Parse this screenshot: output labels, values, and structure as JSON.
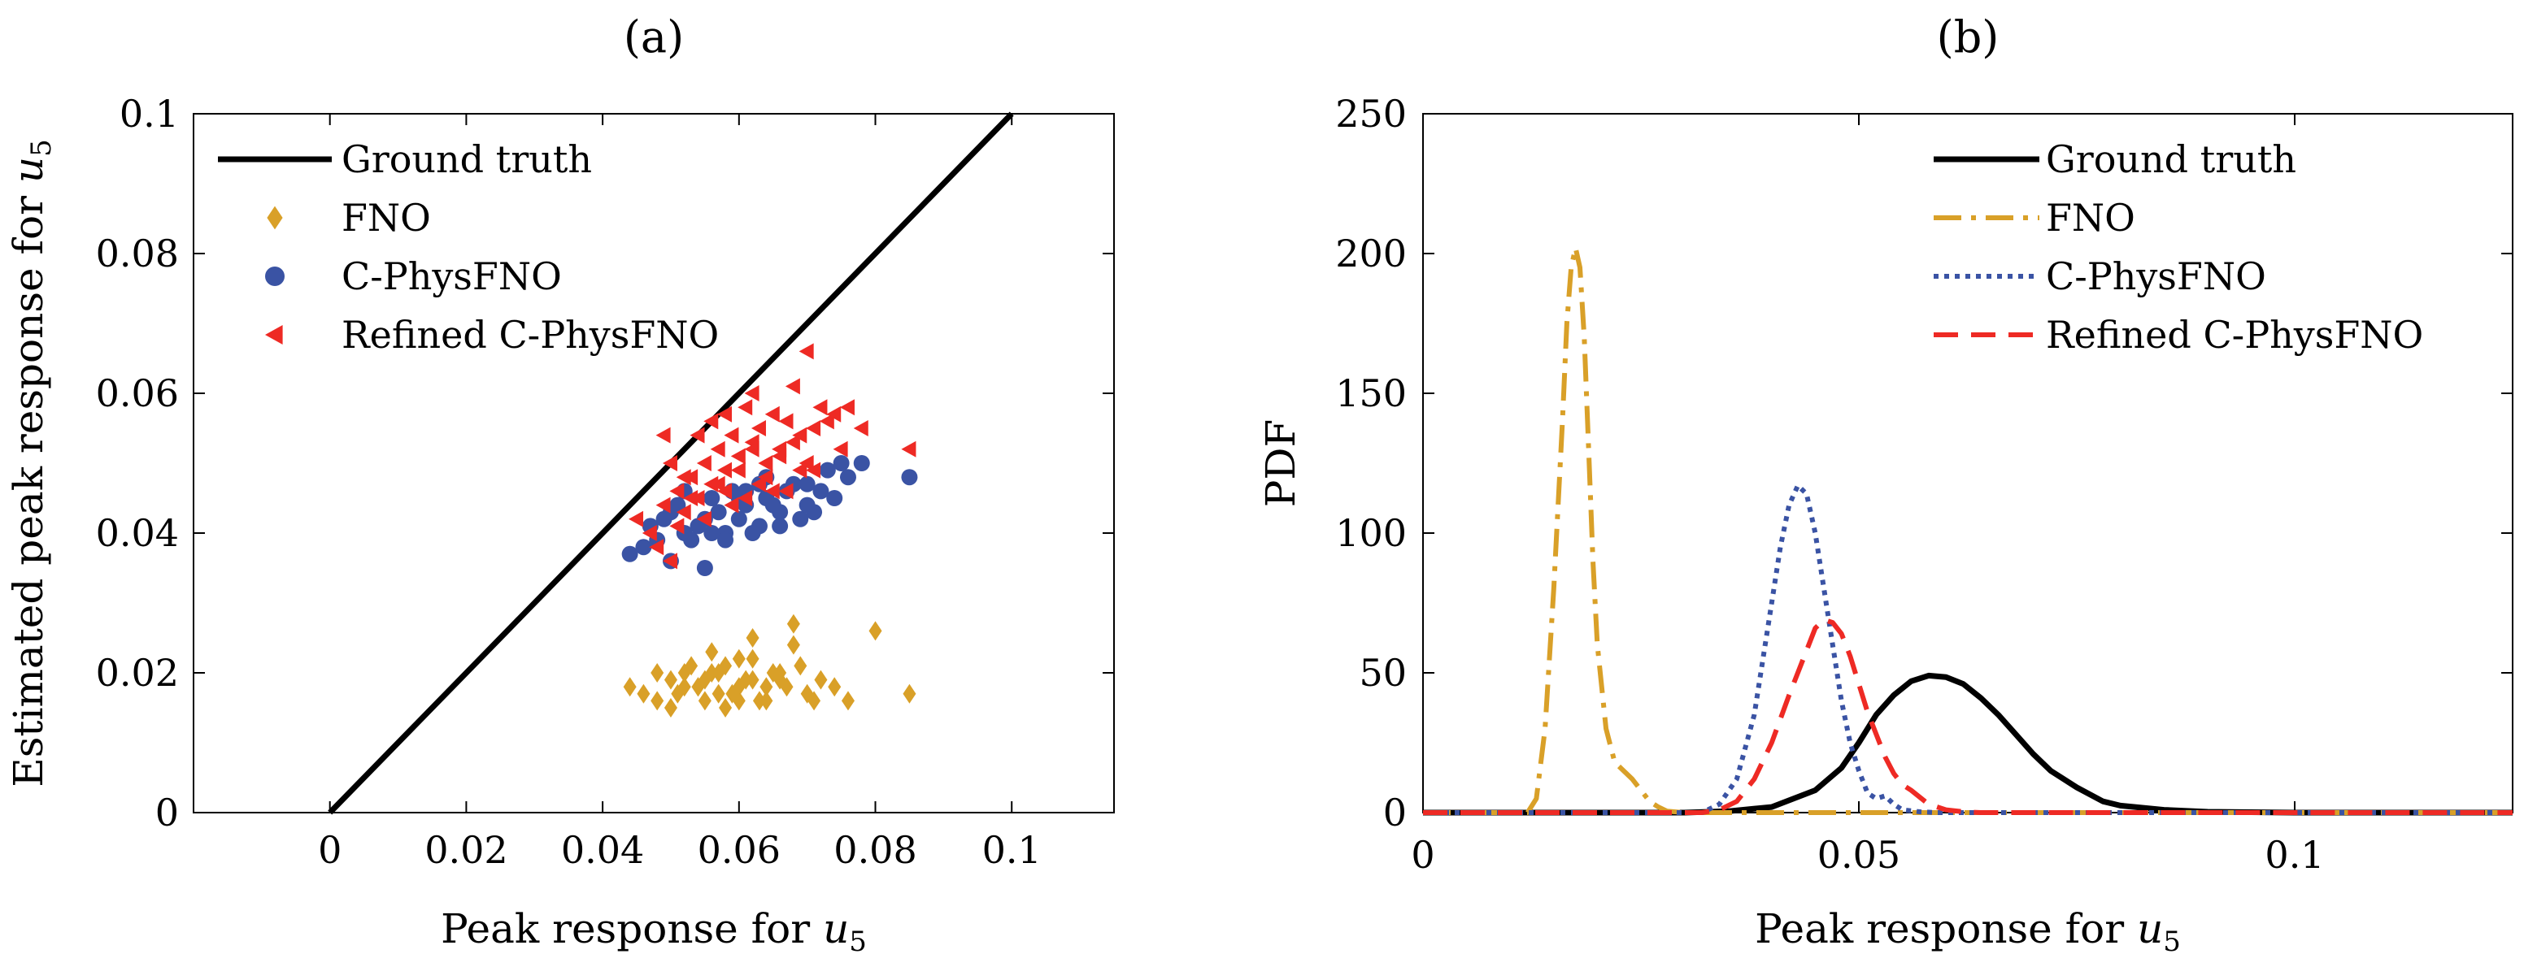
{
  "chart_data": [
    {
      "type": "scatter",
      "panel_title": "(a)",
      "xlabel": "Peak response for u₅",
      "ylabel": "Estimated peak response for u₅",
      "xlim": [
        -0.02,
        0.115
      ],
      "ylim": [
        0,
        0.1
      ],
      "xticks": [
        0,
        0.02,
        0.04,
        0.06,
        0.08,
        0.1
      ],
      "xtick_labels": [
        "0",
        "0.02",
        "0.04",
        "0.06",
        "0.08",
        "0.1"
      ],
      "yticks": [
        0,
        0.02,
        0.04,
        0.06,
        0.08,
        0.1
      ],
      "ytick_labels": [
        "0",
        "0.02",
        "0.04",
        "0.06",
        "0.08",
        "0.1"
      ],
      "legend_position": "top-left",
      "ground_truth": {
        "name": "Ground truth",
        "x": [
          0,
          0.1
        ],
        "y": [
          0,
          0.1
        ],
        "color": "#000000"
      },
      "series": [
        {
          "name": "FNO",
          "marker": "diamond",
          "color": "#D9A028",
          "x": [
            0.044,
            0.046,
            0.048,
            0.05,
            0.052,
            0.053,
            0.055,
            0.057,
            0.059,
            0.06,
            0.062,
            0.064,
            0.066,
            0.068,
            0.07,
            0.072,
            0.074,
            0.076,
            0.08,
            0.085,
            0.048,
            0.051,
            0.054,
            0.056,
            0.058,
            0.061,
            0.063,
            0.065,
            0.067,
            0.069,
            0.071,
            0.05,
            0.052,
            0.055,
            0.057,
            0.06,
            0.062,
            0.064,
            0.066,
            0.058,
            0.06,
            0.054,
            0.056,
            0.068,
            0.062
          ],
          "y": [
            0.018,
            0.017,
            0.016,
            0.019,
            0.018,
            0.021,
            0.016,
            0.02,
            0.017,
            0.022,
            0.019,
            0.018,
            0.02,
            0.024,
            0.017,
            0.019,
            0.018,
            0.016,
            0.026,
            0.017,
            0.02,
            0.017,
            0.018,
            0.023,
            0.015,
            0.019,
            0.016,
            0.02,
            0.018,
            0.021,
            0.016,
            0.015,
            0.02,
            0.019,
            0.017,
            0.018,
            0.022,
            0.016,
            0.019,
            0.021,
            0.016,
            0.018,
            0.02,
            0.027,
            0.025
          ]
        },
        {
          "name": "C-PhysFNO",
          "marker": "circle",
          "color": "#3A53A4",
          "x": [
            0.044,
            0.046,
            0.048,
            0.05,
            0.052,
            0.054,
            0.055,
            0.057,
            0.058,
            0.06,
            0.061,
            0.063,
            0.064,
            0.066,
            0.067,
            0.069,
            0.07,
            0.072,
            0.074,
            0.076,
            0.078,
            0.085,
            0.049,
            0.051,
            0.053,
            0.056,
            0.059,
            0.062,
            0.065,
            0.068,
            0.071,
            0.073,
            0.075,
            0.047,
            0.05,
            0.052,
            0.055,
            0.058,
            0.06,
            0.063,
            0.066,
            0.056,
            0.07,
            0.061,
            0.064
          ],
          "y": [
            0.037,
            0.038,
            0.039,
            0.036,
            0.04,
            0.041,
            0.035,
            0.043,
            0.04,
            0.042,
            0.044,
            0.041,
            0.045,
            0.043,
            0.046,
            0.042,
            0.047,
            0.046,
            0.045,
            0.048,
            0.05,
            0.048,
            0.042,
            0.044,
            0.039,
            0.045,
            0.046,
            0.04,
            0.044,
            0.047,
            0.043,
            0.049,
            0.05,
            0.041,
            0.043,
            0.046,
            0.042,
            0.039,
            0.045,
            0.047,
            0.041,
            0.04,
            0.044,
            0.046,
            0.048
          ]
        },
        {
          "name": "Refined C-PhysFNO",
          "marker": "triangle-left",
          "color": "#EE2A24",
          "x": [
            0.045,
            0.047,
            0.049,
            0.05,
            0.051,
            0.052,
            0.053,
            0.054,
            0.055,
            0.056,
            0.057,
            0.058,
            0.059,
            0.06,
            0.061,
            0.062,
            0.063,
            0.064,
            0.065,
            0.066,
            0.067,
            0.068,
            0.069,
            0.07,
            0.071,
            0.072,
            0.074,
            0.076,
            0.078,
            0.085,
            0.05,
            0.052,
            0.054,
            0.056,
            0.058,
            0.06,
            0.062,
            0.064,
            0.066,
            0.068,
            0.07,
            0.049,
            0.053,
            0.057,
            0.061,
            0.065,
            0.069,
            0.073,
            0.055,
            0.059,
            0.063,
            0.067,
            0.071,
            0.075,
            0.048,
            0.051,
            0.062,
            0.058
          ],
          "y": [
            0.042,
            0.04,
            0.044,
            0.036,
            0.046,
            0.043,
            0.048,
            0.045,
            0.05,
            0.047,
            0.052,
            0.049,
            0.054,
            0.051,
            0.058,
            0.053,
            0.055,
            0.05,
            0.057,
            0.052,
            0.056,
            0.061,
            0.054,
            0.066,
            0.055,
            0.058,
            0.057,
            0.058,
            0.055,
            0.052,
            0.05,
            0.048,
            0.054,
            0.056,
            0.046,
            0.049,
            0.052,
            0.048,
            0.051,
            0.053,
            0.05,
            0.054,
            0.045,
            0.047,
            0.045,
            0.046,
            0.049,
            0.056,
            0.042,
            0.044,
            0.047,
            0.046,
            0.049,
            0.052,
            0.038,
            0.041,
            0.06,
            0.057
          ]
        }
      ]
    },
    {
      "type": "line",
      "panel_title": "(b)",
      "xlabel": "Peak response for u₅",
      "ylabel": "PDF",
      "xlim": [
        0,
        0.125
      ],
      "ylim": [
        0,
        250
      ],
      "xticks": [
        0,
        0.05,
        0.1
      ],
      "xtick_labels": [
        "0",
        "0.05",
        "0.1"
      ],
      "yticks": [
        0,
        50,
        100,
        150,
        200,
        250
      ],
      "ytick_labels": [
        "0",
        "50",
        "100",
        "150",
        "200",
        "250"
      ],
      "legend_position": "top-right",
      "series": [
        {
          "name": "Ground truth",
          "style": "solid",
          "color": "#000000",
          "x": [
            0,
            0.03,
            0.035,
            0.04,
            0.045,
            0.048,
            0.05,
            0.052,
            0.054,
            0.056,
            0.058,
            0.06,
            0.062,
            0.064,
            0.066,
            0.068,
            0.07,
            0.072,
            0.075,
            0.078,
            0.08,
            0.085,
            0.09,
            0.1,
            0.125
          ],
          "y": [
            0,
            0,
            0.5,
            2,
            8,
            16,
            25,
            35,
            42,
            47,
            49,
            48.5,
            46,
            41,
            35,
            28,
            21,
            15,
            9,
            4,
            2.5,
            1,
            0.3,
            0,
            0
          ]
        },
        {
          "name": "FNO",
          "style": "dashdot",
          "color": "#D9A028",
          "x": [
            0,
            0.012,
            0.013,
            0.014,
            0.015,
            0.016,
            0.0165,
            0.017,
            0.0175,
            0.018,
            0.0185,
            0.019,
            0.0195,
            0.02,
            0.021,
            0.022,
            0.023,
            0.024,
            0.025,
            0.026,
            0.027,
            0.028,
            0.03,
            0.125
          ],
          "y": [
            0,
            0,
            5,
            30,
            80,
            140,
            175,
            195,
            202,
            195,
            170,
            130,
            90,
            60,
            30,
            18,
            15,
            12,
            8,
            4,
            2,
            0.5,
            0,
            0
          ]
        },
        {
          "name": "C-PhysFNO",
          "style": "dotted",
          "color": "#3A53A4",
          "x": [
            0,
            0.032,
            0.034,
            0.036,
            0.038,
            0.039,
            0.04,
            0.041,
            0.042,
            0.043,
            0.044,
            0.045,
            0.046,
            0.047,
            0.048,
            0.049,
            0.05,
            0.051,
            0.052,
            0.053,
            0.054,
            0.055,
            0.057,
            0.059,
            0.125
          ],
          "y": [
            0,
            0,
            3,
            12,
            35,
            55,
            75,
            95,
            110,
            117,
            114,
            100,
            80,
            60,
            40,
            25,
            15,
            7,
            5,
            6,
            3,
            1,
            0.3,
            0,
            0
          ]
        },
        {
          "name": "Refined C-PhysFNO",
          "style": "dashed",
          "color": "#EE2A24",
          "x": [
            0,
            0.032,
            0.034,
            0.036,
            0.038,
            0.04,
            0.042,
            0.044,
            0.045,
            0.046,
            0.047,
            0.048,
            0.049,
            0.05,
            0.051,
            0.052,
            0.053,
            0.054,
            0.055,
            0.056,
            0.058,
            0.06,
            0.062,
            0.064,
            0.125
          ],
          "y": [
            0,
            0,
            1,
            4,
            12,
            25,
            42,
            58,
            66,
            69,
            68,
            64,
            56,
            46,
            36,
            28,
            20,
            14,
            10,
            8,
            3,
            1,
            0.3,
            0,
            0
          ]
        }
      ]
    }
  ]
}
